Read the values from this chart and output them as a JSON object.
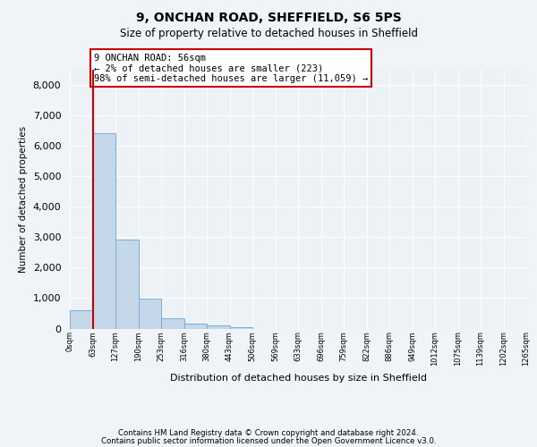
{
  "title1": "9, ONCHAN ROAD, SHEFFIELD, S6 5PS",
  "title2": "Size of property relative to detached houses in Sheffield",
  "xlabel": "Distribution of detached houses by size in Sheffield",
  "ylabel": "Number of detached properties",
  "bar_color": "#c5d8ea",
  "bar_edge_color": "#7aaed6",
  "annotation_line_color": "#cc0000",
  "annotation_text": "9 ONCHAN ROAD: 56sqm\n← 2% of detached houses are smaller (223)\n98% of semi-detached houses are larger (11,059) →",
  "bins": [
    "0sqm",
    "63sqm",
    "127sqm",
    "190sqm",
    "253sqm",
    "316sqm",
    "380sqm",
    "443sqm",
    "506sqm",
    "569sqm",
    "633sqm",
    "696sqm",
    "759sqm",
    "822sqm",
    "886sqm",
    "949sqm",
    "1012sqm",
    "1075sqm",
    "1139sqm",
    "1202sqm",
    "1265sqm"
  ],
  "values": [
    600,
    6400,
    2920,
    975,
    350,
    155,
    90,
    55,
    0,
    0,
    0,
    0,
    0,
    0,
    0,
    0,
    0,
    0,
    0,
    0
  ],
  "ylim": [
    0,
    8500
  ],
  "yticks": [
    0,
    1000,
    2000,
    3000,
    4000,
    5000,
    6000,
    7000,
    8000
  ],
  "footer1": "Contains HM Land Registry data © Crown copyright and database right 2024.",
  "footer2": "Contains public sector information licensed under the Open Government Licence v3.0.",
  "bg_color": "#f0f4f8",
  "plot_bg_color": "#edf2f7",
  "grid_color": "#ffffff"
}
